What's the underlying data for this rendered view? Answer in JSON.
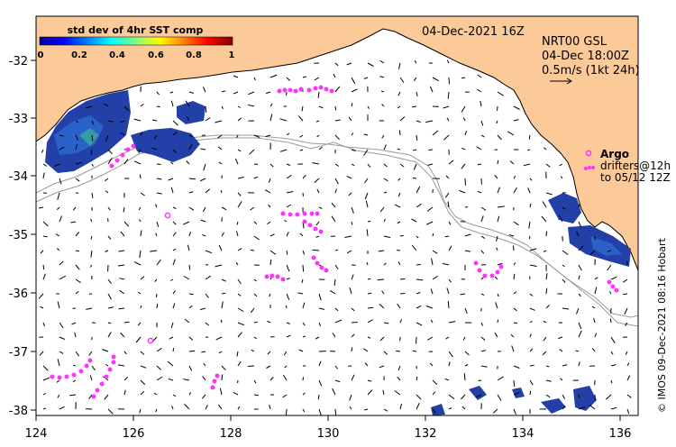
{
  "map": {
    "date_label": "04-Dec-2021 16Z",
    "model_label": "NRT00 GSL",
    "model_time": "04-Dec 18:00Z",
    "scale_label": "0.5m/s (1kt 24h)",
    "credit": "© IMOS 09-Dec-2021 08:16 Hobart",
    "lon_ticks": [
      "124",
      "126",
      "128",
      "130",
      "132",
      "134",
      "136"
    ],
    "lat_ticks": [
      "-32",
      "-33",
      "-34",
      "-35",
      "-36",
      "-37",
      "-38"
    ],
    "lon_range": [
      124,
      136.7
    ],
    "lat_range": [
      -38.05,
      -31.25
    ]
  },
  "colorbar": {
    "title": "std dev of 4hr SST comp",
    "ticks": [
      "0",
      "0.2",
      "0.4",
      "0.6",
      "0.8",
      "1"
    ]
  },
  "legend": {
    "argo_label": "Argo",
    "drifters_line1": "drifters@12h",
    "drifters_line2": "to 05/12 12Z"
  },
  "colors": {
    "land": "#fcc999",
    "float": "#ff33ff",
    "shelf": "#9a9a9a",
    "sst_dense": "#233fa8"
  }
}
